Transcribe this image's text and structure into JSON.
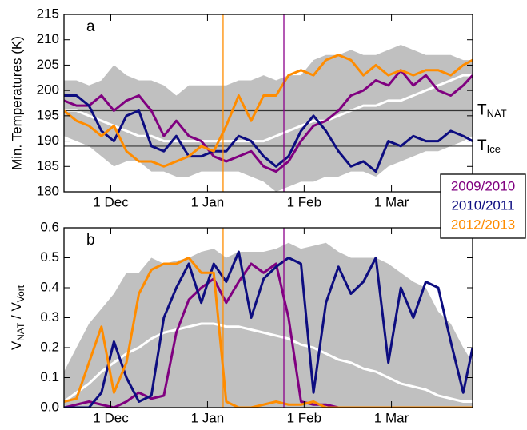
{
  "chart_data": [
    {
      "type": "line",
      "panel_label": "a",
      "ylabel": "Min. Temperatures (K)",
      "xlim": [
        15,
        146
      ],
      "ylim": [
        180,
        215
      ],
      "xticks": [
        {
          "value": 30,
          "label": "1 Dec"
        },
        {
          "value": 61,
          "label": "1 Jan"
        },
        {
          "value": 92,
          "label": "1 Feb"
        },
        {
          "value": 120,
          "label": "1 Mar"
        }
      ],
      "yticks": [
        180,
        185,
        190,
        195,
        200,
        205,
        210,
        215
      ],
      "x": [
        15,
        19,
        23,
        27,
        31,
        35,
        39,
        43,
        47,
        51,
        55,
        59,
        63,
        67,
        71,
        75,
        79,
        83,
        87,
        91,
        95,
        99,
        103,
        107,
        111,
        115,
        119,
        123,
        127,
        131,
        135,
        139,
        143,
        146
      ],
      "band": {
        "color": "#c0c0c0",
        "upper": [
          202,
          202,
          201,
          202,
          205,
          203,
          202,
          202,
          201,
          199,
          201,
          201,
          201,
          201,
          202,
          202,
          203,
          202,
          203,
          203,
          206,
          207,
          207,
          208,
          207,
          207,
          208,
          209,
          208,
          207,
          207,
          207,
          206,
          206
        ],
        "lower": [
          191,
          190,
          189,
          187,
          185,
          186,
          186,
          184,
          184,
          183,
          183,
          184,
          184,
          184,
          184,
          183,
          182,
          180,
          181,
          182,
          182,
          183,
          183,
          184,
          184,
          183,
          185,
          186,
          187,
          188,
          188,
          189,
          190,
          191
        ]
      },
      "mean": {
        "color": "#ffffff",
        "values": [
          196,
          196,
          195,
          194,
          193,
          192,
          191,
          191,
          190,
          190,
          190,
          190,
          190,
          190,
          190,
          190,
          190,
          191,
          192,
          193,
          194,
          194,
          195,
          196,
          197,
          197,
          198,
          198,
          199,
          200,
          201,
          202,
          203,
          203
        ]
      },
      "series": [
        {
          "name": "2009/2010",
          "color": "#800080",
          "values": [
            198,
            197,
            197,
            199,
            196,
            198,
            199,
            196,
            191,
            194,
            191,
            190,
            187,
            186,
            187,
            188,
            185,
            184,
            186,
            190,
            193,
            194,
            196,
            199,
            200,
            202,
            201,
            204,
            201,
            203,
            200,
            199,
            201,
            203
          ]
        },
        {
          "name": "2010/2011",
          "color": "#0d0d80",
          "values": [
            199,
            199,
            197,
            192,
            190,
            195,
            196,
            189,
            188,
            191,
            187,
            187,
            188,
            188,
            191,
            190,
            187,
            185,
            187,
            192,
            195,
            192,
            188,
            185,
            186,
            184,
            190,
            189,
            191,
            190,
            190,
            192,
            191,
            190
          ]
        },
        {
          "name": "2012/2013",
          "color": "#ff8c00",
          "values": [
            196,
            194,
            193,
            191,
            193,
            188,
            186,
            186,
            185,
            186,
            187,
            189,
            188,
            193,
            199,
            194,
            199,
            199,
            203,
            204,
            203,
            206,
            207,
            206,
            203,
            205,
            203,
            204,
            203,
            204,
            204,
            203,
            205,
            206
          ]
        }
      ],
      "vlines": [
        {
          "x": 66,
          "color": "#ff8c00"
        },
        {
          "x": 85.5,
          "color": "#8b008b"
        }
      ],
      "hlines": [
        {
          "y": 196,
          "label": {
            "main": "T",
            "sub": "NAT"
          }
        },
        {
          "y": 189,
          "label": {
            "main": "T",
            "sub": "Ice"
          }
        }
      ]
    },
    {
      "type": "line",
      "panel_label": "b",
      "ylabel": {
        "main": "V",
        "sub": "NAT",
        "main2": " / V",
        "sub2": "Vort"
      },
      "xlim": [
        15,
        146
      ],
      "ylim": [
        0,
        0.6
      ],
      "xticks": [
        {
          "value": 30,
          "label": "1 Dec"
        },
        {
          "value": 61,
          "label": "1 Jan"
        },
        {
          "value": 92,
          "label": "1 Feb"
        },
        {
          "value": 120,
          "label": "1 Mar"
        }
      ],
      "yticks": [
        {
          "value": 0,
          "label": "0.0"
        },
        0.1,
        0.2,
        0.3,
        0.4,
        0.5,
        0.6
      ],
      "x": [
        15,
        19,
        23,
        27,
        31,
        35,
        39,
        43,
        47,
        51,
        55,
        59,
        63,
        67,
        71,
        75,
        79,
        83,
        87,
        91,
        95,
        99,
        103,
        107,
        111,
        115,
        119,
        123,
        127,
        131,
        135,
        139,
        143,
        146
      ],
      "band": {
        "color": "#c0c0c0",
        "upper": [
          0.12,
          0.2,
          0.28,
          0.33,
          0.38,
          0.45,
          0.45,
          0.5,
          0.48,
          0.49,
          0.5,
          0.52,
          0.53,
          0.5,
          0.52,
          0.52,
          0.52,
          0.53,
          0.55,
          0.53,
          0.54,
          0.55,
          0.52,
          0.5,
          0.5,
          0.5,
          0.48,
          0.45,
          0.42,
          0.4,
          0.32,
          0.28,
          0.2,
          0.15
        ],
        "lower": [
          0,
          0,
          0,
          0,
          0,
          0,
          0,
          0,
          0,
          0,
          0,
          0,
          0,
          0,
          0,
          0,
          0,
          0,
          0,
          0,
          0,
          0,
          0,
          0,
          0,
          0,
          0,
          0,
          0,
          0,
          0,
          0,
          0,
          0
        ]
      },
      "mean": {
        "color": "#ffffff",
        "values": [
          0.02,
          0.05,
          0.08,
          0.12,
          0.15,
          0.18,
          0.2,
          0.23,
          0.25,
          0.26,
          0.27,
          0.28,
          0.28,
          0.27,
          0.27,
          0.26,
          0.25,
          0.24,
          0.23,
          0.21,
          0.2,
          0.18,
          0.16,
          0.15,
          0.13,
          0.12,
          0.1,
          0.08,
          0.07,
          0.06,
          0.04,
          0.03,
          0.02,
          0.02
        ]
      },
      "series": [
        {
          "color": "#800080",
          "values": [
            0,
            0.01,
            0.02,
            0.01,
            0,
            0.02,
            0.05,
            0.03,
            0.04,
            0.25,
            0.36,
            0.4,
            0.43,
            0.35,
            0.42,
            0.48,
            0.45,
            0.48,
            0.3,
            0.02,
            0.01,
            0.01,
            0,
            0,
            0,
            0,
            0,
            0,
            0,
            0,
            0,
            0,
            0,
            0
          ]
        },
        {
          "color": "#0d0d80",
          "values": [
            0,
            0,
            0,
            0.05,
            0.22,
            0.1,
            0.02,
            0.04,
            0.3,
            0.4,
            0.48,
            0.35,
            0.48,
            0.42,
            0.52,
            0.3,
            0.43,
            0.47,
            0.5,
            0.48,
            0.05,
            0.35,
            0.47,
            0.38,
            0.42,
            0.5,
            0.15,
            0.4,
            0.3,
            0.42,
            0.4,
            0.22,
            0.05,
            0.2
          ]
        },
        {
          "color": "#ff8c00",
          "values": [
            0.02,
            0.03,
            0.15,
            0.27,
            0.05,
            0.15,
            0.38,
            0.46,
            0.48,
            0.48,
            0.5,
            0.45,
            0.45,
            0.02,
            0,
            0,
            0.01,
            0.02,
            0.01,
            0.01,
            0.02,
            0,
            0,
            0,
            0,
            0,
            0,
            0,
            0,
            0,
            0,
            0,
            0,
            0
          ]
        }
      ],
      "vlines": [
        {
          "x": 66,
          "color": "#ff8c00"
        },
        {
          "x": 85.5,
          "color": "#8b008b"
        }
      ]
    }
  ]
}
